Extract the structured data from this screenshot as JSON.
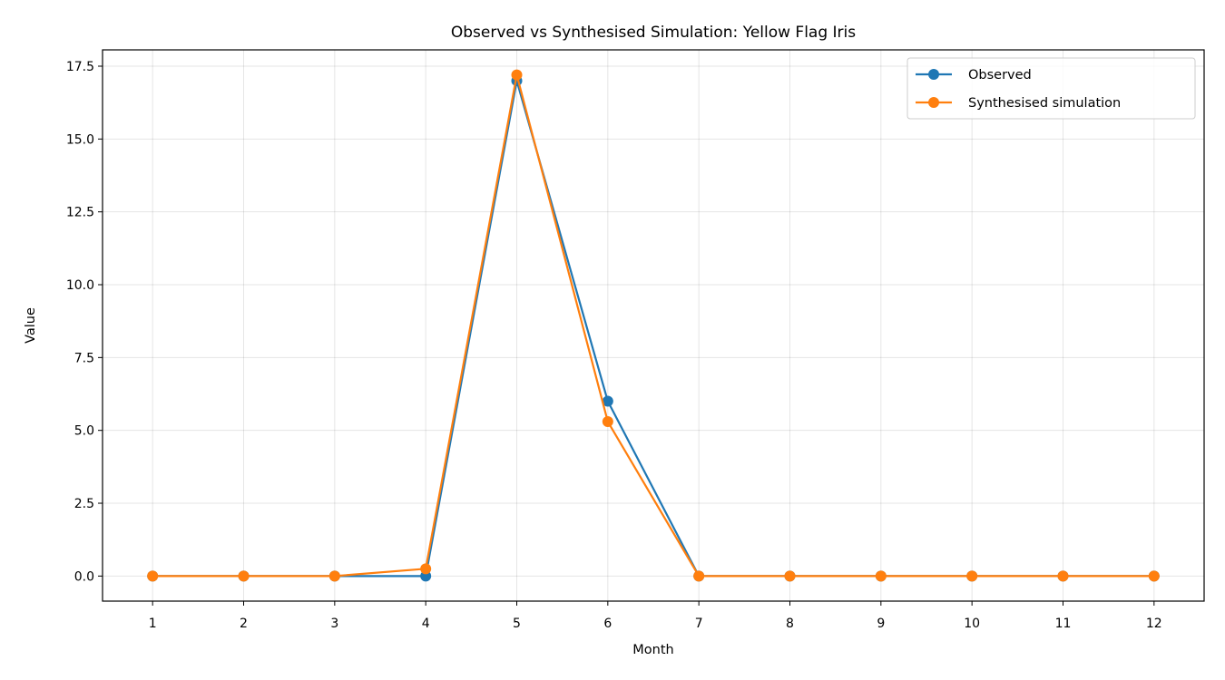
{
  "chart_data": {
    "type": "line",
    "title": "Observed vs Synthesised Simulation: Yellow Flag Iris",
    "xlabel": "Month",
    "ylabel": "Value",
    "x": [
      1,
      2,
      3,
      4,
      5,
      6,
      7,
      8,
      9,
      10,
      11,
      12
    ],
    "xlim": [
      0.45,
      12.55
    ],
    "ylim": [
      -0.86,
      18.06
    ],
    "yticks": [
      0.0,
      2.5,
      5.0,
      7.5,
      10.0,
      12.5,
      15.0,
      17.5
    ],
    "ytick_labels": [
      "0.0",
      "2.5",
      "5.0",
      "7.5",
      "10.0",
      "12.5",
      "15.0",
      "17.5"
    ],
    "xtick_labels": [
      "1",
      "2",
      "3",
      "4",
      "5",
      "6",
      "7",
      "8",
      "9",
      "10",
      "11",
      "12"
    ],
    "grid": true,
    "legend_position": "top-right",
    "series": [
      {
        "name": "Observed",
        "color": "#1f77b4",
        "marker": "circle",
        "values": [
          0,
          0,
          0,
          0,
          17.0,
          6.0,
          0,
          0,
          0,
          0,
          0,
          0
        ]
      },
      {
        "name": "Synthesised simulation",
        "color": "#ff7f0e",
        "marker": "circle",
        "values": [
          0,
          0,
          0,
          0.25,
          17.2,
          5.3,
          0,
          0,
          0,
          0,
          0,
          0
        ]
      }
    ]
  }
}
